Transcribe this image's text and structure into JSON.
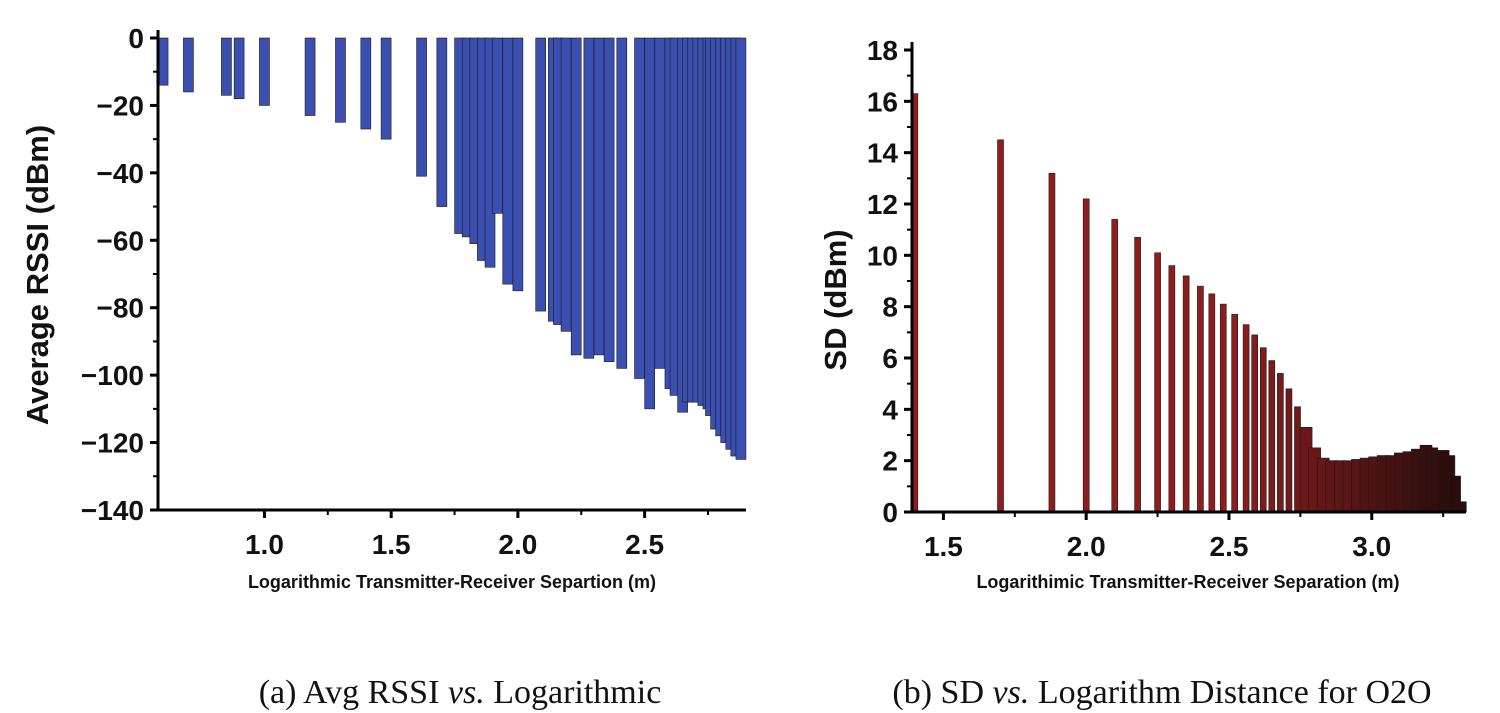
{
  "captions": {
    "a": {
      "prefix": "(a)  Avg RSSI  ",
      "vs": "vs.",
      "suffix": " Logarithmic"
    },
    "b": {
      "prefix": "(b) SD ",
      "vs": "vs.",
      "suffix": " Logarithm Distance for O2O"
    }
  },
  "chart_data": [
    {
      "type": "bar",
      "title": "",
      "xlabel": "Logarithmic Transmitter-Receiver Separtion (m)",
      "ylabel": "Average RSSI (dBm)",
      "xlim": [
        0.58,
        2.9
      ],
      "ylim": [
        -140,
        0
      ],
      "xticks": [
        1.0,
        1.5,
        2.0,
        2.5
      ],
      "xtick_labels": [
        "1.0",
        "1.5",
        "2.0",
        "2.5"
      ],
      "yticks": [
        0,
        -20,
        -40,
        -60,
        -80,
        -100,
        -120,
        -140
      ],
      "ytick_labels": [
        "0",
        "−20",
        "−40",
        "−60",
        "−80",
        "−100",
        "−120",
        "−140"
      ],
      "bar_color": "#3a4fb0",
      "series": [
        {
          "name": "Average RSSI",
          "x": [
            0.6,
            0.7,
            0.85,
            0.9,
            1.0,
            1.18,
            1.3,
            1.4,
            1.48,
            1.62,
            1.7,
            1.77,
            1.8,
            1.83,
            1.86,
            1.89,
            1.92,
            1.96,
            2.0,
            2.09,
            2.14,
            2.16,
            2.19,
            2.23,
            2.28,
            2.32,
            2.36,
            2.41,
            2.48,
            2.52,
            2.56,
            2.6,
            2.62,
            2.65,
            2.67,
            2.69,
            2.71,
            2.73,
            2.75,
            2.76,
            2.78,
            2.8,
            2.82,
            2.84,
            2.86,
            2.88
          ],
          "values": [
            -14,
            -16,
            -17,
            -18,
            -20,
            -23,
            -25,
            -27,
            -30,
            -41,
            -50,
            -58,
            -59,
            -61,
            -66,
            -68,
            -52,
            -73,
            -75,
            -81,
            -84,
            -85,
            -87,
            -94,
            -95,
            -94,
            -96,
            -98,
            -101,
            -110,
            -98,
            -104,
            -106,
            -111,
            -108,
            -108,
            -108,
            -109,
            -110,
            -112,
            -116,
            -118,
            -120,
            -122,
            -124,
            -125
          ]
        }
      ]
    },
    {
      "type": "bar",
      "title": "",
      "xlabel": "Logarithimic Transmitter-Receiver Separation (m)",
      "ylabel": "SD (dBm)",
      "xlim": [
        1.39,
        3.33
      ],
      "ylim": [
        0,
        18
      ],
      "xticks": [
        1.5,
        2.0,
        2.5,
        3.0
      ],
      "xtick_labels": [
        "1.5",
        "2.0",
        "2.5",
        "3.0"
      ],
      "yticks": [
        0,
        2,
        4,
        6,
        8,
        10,
        12,
        14,
        16,
        18
      ],
      "ytick_labels": [
        "0",
        "2",
        "4",
        "6",
        "8",
        "10",
        "12",
        "14",
        "16",
        "18"
      ],
      "bar_color": "#8e1e1e",
      "bar_color_dark": "#2a0c0c",
      "series": [
        {
          "name": "SD",
          "x": [
            1.4,
            1.7,
            1.88,
            2.0,
            2.1,
            2.18,
            2.25,
            2.3,
            2.35,
            2.4,
            2.44,
            2.48,
            2.52,
            2.56,
            2.59,
            2.62,
            2.65,
            2.68,
            2.71,
            2.74,
            2.77,
            2.8,
            2.83,
            2.86,
            2.89,
            2.92,
            2.95,
            2.98,
            3.01,
            3.04,
            3.07,
            3.1,
            3.13,
            3.16,
            3.19,
            3.21,
            3.23,
            3.25,
            3.27,
            3.29,
            3.31
          ],
          "values": [
            16.3,
            14.5,
            13.2,
            12.2,
            11.4,
            10.7,
            10.1,
            9.6,
            9.2,
            8.8,
            8.5,
            8.1,
            7.7,
            7.3,
            6.9,
            6.4,
            5.9,
            5.4,
            4.8,
            4.1,
            3.3,
            2.5,
            2.1,
            2.0,
            2.0,
            2.0,
            2.05,
            2.1,
            2.15,
            2.2,
            2.2,
            2.3,
            2.35,
            2.45,
            2.6,
            2.5,
            2.3,
            2.4,
            2.2,
            1.4,
            0.4
          ]
        }
      ]
    }
  ]
}
